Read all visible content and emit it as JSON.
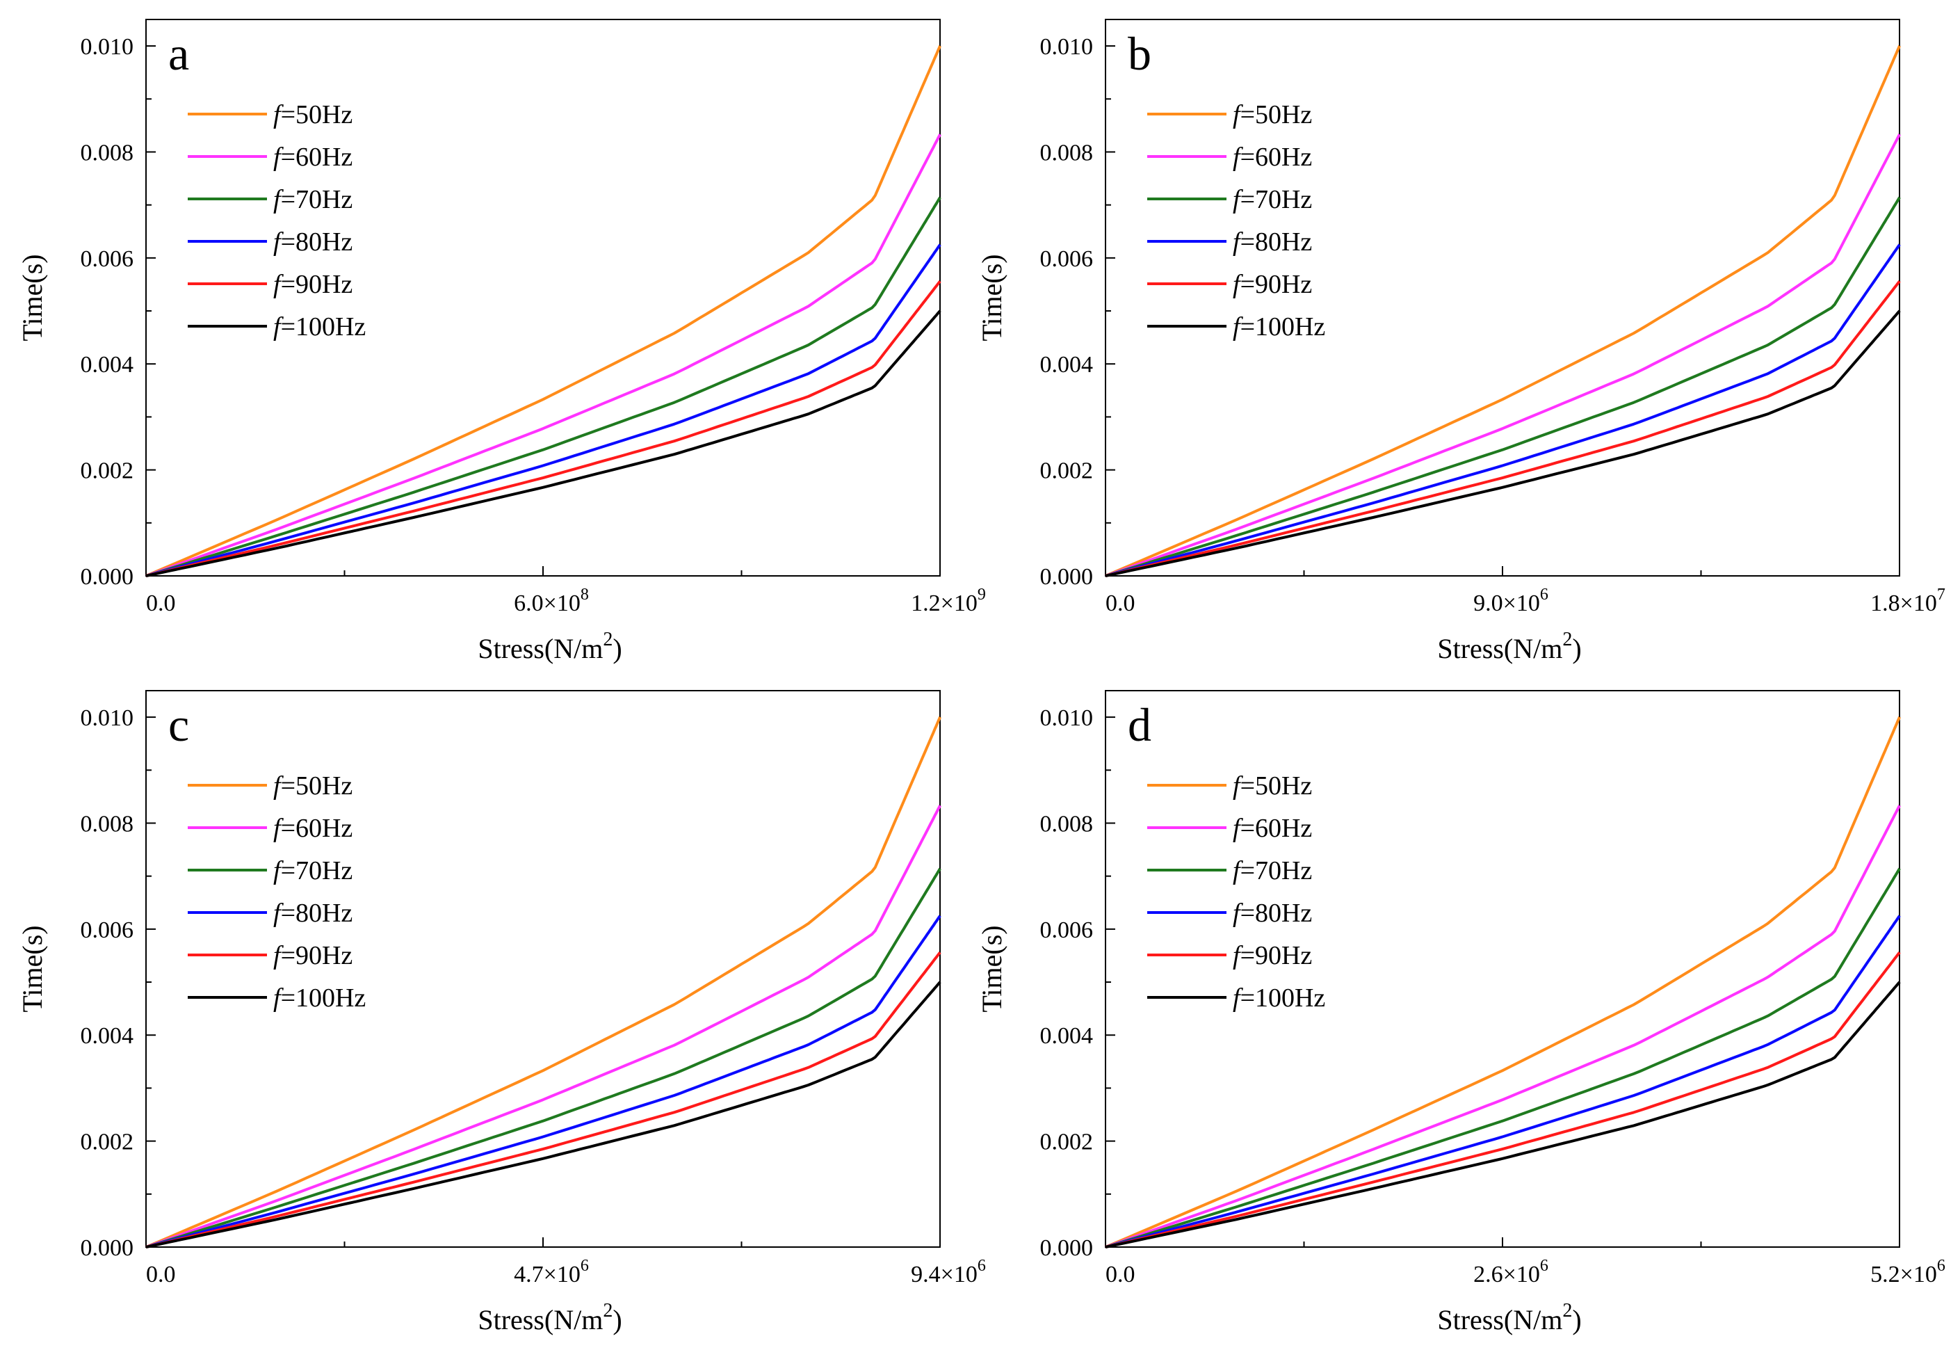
{
  "series_style": [
    {
      "label": "=50Hz",
      "freq": 50,
      "color": "#ff8c1a"
    },
    {
      "label": "=60Hz",
      "freq": 60,
      "color": "#ff33ff"
    },
    {
      "label": "=70Hz",
      "freq": 70,
      "color": "#1f7a1f"
    },
    {
      "label": "=80Hz",
      "freq": 80,
      "color": "#0a0aff"
    },
    {
      "label": "=90Hz",
      "freq": 90,
      "color": "#ff1a1a"
    },
    {
      "label": "=100Hz",
      "freq": 100,
      "color": "#000000"
    }
  ],
  "legend_prefix": "f",
  "chart_data": [
    {
      "type": "line",
      "panel_label": "a",
      "xlabel": "Stress(N/m2)",
      "ylabel": "Time(s)",
      "xlim": [
        0,
        1200000000.0
      ],
      "ylim": [
        0,
        0.0105
      ],
      "xticks": [
        {
          "mant": "0.0",
          "exp": ""
        },
        {
          "mant": "6.0×10",
          "exp": "8"
        },
        {
          "mant": "1.2×10",
          "exp": "9"
        }
      ],
      "yticks": [
        "0.000",
        "0.002",
        "0.004",
        "0.006",
        "0.008",
        "0.010"
      ],
      "legend_position": "top-left",
      "series": [
        {
          "name": "f=50Hz",
          "x": [
            0,
            200000000.0,
            400000000.0,
            600000000.0,
            800000000.0,
            1000000000.0,
            1100000000.0,
            1200000000.0
          ],
          "y": [
            0,
            0.00107,
            0.00218,
            0.00333,
            0.00459,
            0.00609,
            0.00712,
            0.01
          ]
        },
        {
          "name": "f=60Hz",
          "x": [
            0,
            200000000.0,
            400000000.0,
            600000000.0,
            800000000.0,
            1000000000.0,
            1100000000.0,
            1200000000.0
          ],
          "y": [
            0,
            0.00089,
            0.00182,
            0.00278,
            0.00382,
            0.00508,
            0.00593,
            0.00833
          ]
        },
        {
          "name": "f=70Hz",
          "x": [
            0,
            200000000.0,
            400000000.0,
            600000000.0,
            800000000.0,
            1000000000.0,
            1100000000.0,
            1200000000.0
          ],
          "y": [
            0,
            0.00077,
            0.00156,
            0.00238,
            0.00328,
            0.00435,
            0.00508,
            0.00714
          ]
        },
        {
          "name": "f=80Hz",
          "x": [
            0,
            200000000.0,
            400000000.0,
            600000000.0,
            800000000.0,
            1000000000.0,
            1100000000.0,
            1200000000.0
          ],
          "y": [
            0,
            0.00067,
            0.00136,
            0.00208,
            0.00287,
            0.00381,
            0.00445,
            0.00625
          ]
        },
        {
          "name": "f=90Hz",
          "x": [
            0,
            200000000.0,
            400000000.0,
            600000000.0,
            800000000.0,
            1000000000.0,
            1100000000.0,
            1200000000.0
          ],
          "y": [
            0,
            0.00059,
            0.00121,
            0.00185,
            0.00255,
            0.00338,
            0.00395,
            0.00556
          ]
        },
        {
          "name": "f=100Hz",
          "x": [
            0,
            200000000.0,
            400000000.0,
            600000000.0,
            800000000.0,
            1000000000.0,
            1100000000.0,
            1200000000.0
          ],
          "y": [
            0,
            0.00053,
            0.00109,
            0.00167,
            0.0023,
            0.00305,
            0.00356,
            0.005
          ]
        }
      ]
    },
    {
      "type": "line",
      "panel_label": "b",
      "xlabel": "Stress(N/m2)",
      "ylabel": "Time(s)",
      "xlim": [
        0,
        18000000.0
      ],
      "ylim": [
        0,
        0.0105
      ],
      "xticks": [
        {
          "mant": "0.0",
          "exp": ""
        },
        {
          "mant": "9.0×10",
          "exp": "6"
        },
        {
          "mant": "1.8×10",
          "exp": "7"
        }
      ],
      "yticks": [
        "0.000",
        "0.002",
        "0.004",
        "0.006",
        "0.008",
        "0.010"
      ],
      "legend_position": "top-left",
      "series": [
        {
          "name": "f=50Hz",
          "x": [
            0,
            3000000.0,
            6000000.0,
            9000000.0,
            12000000.0,
            15000000.0,
            16500000.0,
            18000000.0
          ],
          "y": [
            0,
            0.00107,
            0.00218,
            0.00333,
            0.00459,
            0.00609,
            0.00712,
            0.01
          ]
        },
        {
          "name": "f=60Hz",
          "x": [
            0,
            3000000.0,
            6000000.0,
            9000000.0,
            12000000.0,
            15000000.0,
            16500000.0,
            18000000.0
          ],
          "y": [
            0,
            0.00089,
            0.00182,
            0.00278,
            0.00382,
            0.00508,
            0.00593,
            0.00833
          ]
        },
        {
          "name": "f=70Hz",
          "x": [
            0,
            3000000.0,
            6000000.0,
            9000000.0,
            12000000.0,
            15000000.0,
            16500000.0,
            18000000.0
          ],
          "y": [
            0,
            0.00077,
            0.00156,
            0.00238,
            0.00328,
            0.00435,
            0.00508,
            0.00714
          ]
        },
        {
          "name": "f=80Hz",
          "x": [
            0,
            3000000.0,
            6000000.0,
            9000000.0,
            12000000.0,
            15000000.0,
            16500000.0,
            18000000.0
          ],
          "y": [
            0,
            0.00067,
            0.00136,
            0.00208,
            0.00287,
            0.00381,
            0.00445,
            0.00625
          ]
        },
        {
          "name": "f=90Hz",
          "x": [
            0,
            3000000.0,
            6000000.0,
            9000000.0,
            12000000.0,
            15000000.0,
            16500000.0,
            18000000.0
          ],
          "y": [
            0,
            0.00059,
            0.00121,
            0.00185,
            0.00255,
            0.00338,
            0.00395,
            0.00556
          ]
        },
        {
          "name": "f=100Hz",
          "x": [
            0,
            3000000.0,
            6000000.0,
            9000000.0,
            12000000.0,
            15000000.0,
            16500000.0,
            18000000.0
          ],
          "y": [
            0,
            0.00053,
            0.00109,
            0.00167,
            0.0023,
            0.00305,
            0.00356,
            0.005
          ]
        }
      ]
    },
    {
      "type": "line",
      "panel_label": "c",
      "xlabel": "Stress(N/m2)",
      "ylabel": "Time(s)",
      "xlim": [
        0,
        9400000.0
      ],
      "ylim": [
        0,
        0.0105
      ],
      "xticks": [
        {
          "mant": "0.0",
          "exp": ""
        },
        {
          "mant": "4.7×10",
          "exp": "6"
        },
        {
          "mant": "9.4×10",
          "exp": "6"
        }
      ],
      "yticks": [
        "0.000",
        "0.002",
        "0.004",
        "0.006",
        "0.008",
        "0.010"
      ],
      "legend_position": "top-left",
      "series": [
        {
          "name": "f=50Hz",
          "x": [
            0,
            1570000.0,
            3130000.0,
            4700000.0,
            6270000.0,
            7830000.0,
            8620000.0,
            9400000.0
          ],
          "y": [
            0,
            0.00107,
            0.00218,
            0.00333,
            0.00459,
            0.00609,
            0.00712,
            0.01
          ]
        },
        {
          "name": "f=60Hz",
          "x": [
            0,
            1570000.0,
            3130000.0,
            4700000.0,
            6270000.0,
            7830000.0,
            8620000.0,
            9400000.0
          ],
          "y": [
            0,
            0.00089,
            0.00182,
            0.00278,
            0.00382,
            0.00508,
            0.00593,
            0.00833
          ]
        },
        {
          "name": "f=70Hz",
          "x": [
            0,
            1570000.0,
            3130000.0,
            4700000.0,
            6270000.0,
            7830000.0,
            8620000.0,
            9400000.0
          ],
          "y": [
            0,
            0.00077,
            0.00156,
            0.00238,
            0.00328,
            0.00435,
            0.00508,
            0.00714
          ]
        },
        {
          "name": "f=80Hz",
          "x": [
            0,
            1570000.0,
            3130000.0,
            4700000.0,
            6270000.0,
            7830000.0,
            8620000.0,
            9400000.0
          ],
          "y": [
            0,
            0.00067,
            0.00136,
            0.00208,
            0.00287,
            0.00381,
            0.00445,
            0.00625
          ]
        },
        {
          "name": "f=90Hz",
          "x": [
            0,
            1570000.0,
            3130000.0,
            4700000.0,
            6270000.0,
            7830000.0,
            8620000.0,
            9400000.0
          ],
          "y": [
            0,
            0.00059,
            0.00121,
            0.00185,
            0.00255,
            0.00338,
            0.00395,
            0.00556
          ]
        },
        {
          "name": "f=100Hz",
          "x": [
            0,
            1570000.0,
            3130000.0,
            4700000.0,
            6270000.0,
            7830000.0,
            8620000.0,
            9400000.0
          ],
          "y": [
            0,
            0.00053,
            0.00109,
            0.00167,
            0.0023,
            0.00305,
            0.00356,
            0.005
          ]
        }
      ]
    },
    {
      "type": "line",
      "panel_label": "d",
      "xlabel": "Stress(N/m2)",
      "ylabel": "Time(s)",
      "xlim": [
        0,
        5200000.0
      ],
      "ylim": [
        0,
        0.0105
      ],
      "xticks": [
        {
          "mant": "0.0",
          "exp": ""
        },
        {
          "mant": "2.6×10",
          "exp": "6"
        },
        {
          "mant": "5.2×10",
          "exp": "6"
        }
      ],
      "yticks": [
        "0.000",
        "0.002",
        "0.004",
        "0.006",
        "0.008",
        "0.010"
      ],
      "legend_position": "top-left",
      "series": [
        {
          "name": "f=50Hz",
          "x": [
            0,
            870000.0,
            1730000.0,
            2600000.0,
            3470000.0,
            4330000.0,
            4770000.0,
            5200000.0
          ],
          "y": [
            0,
            0.00107,
            0.00218,
            0.00333,
            0.00459,
            0.00609,
            0.00712,
            0.01
          ]
        },
        {
          "name": "f=60Hz",
          "x": [
            0,
            870000.0,
            1730000.0,
            2600000.0,
            3470000.0,
            4330000.0,
            4770000.0,
            5200000.0
          ],
          "y": [
            0,
            0.00089,
            0.00182,
            0.00278,
            0.00382,
            0.00508,
            0.00593,
            0.00833
          ]
        },
        {
          "name": "f=70Hz",
          "x": [
            0,
            870000.0,
            1730000.0,
            2600000.0,
            3470000.0,
            4330000.0,
            4770000.0,
            5200000.0
          ],
          "y": [
            0,
            0.00077,
            0.00156,
            0.00238,
            0.00328,
            0.00435,
            0.00508,
            0.00714
          ]
        },
        {
          "name": "f=80Hz",
          "x": [
            0,
            870000.0,
            1730000.0,
            2600000.0,
            3470000.0,
            4330000.0,
            4770000.0,
            5200000.0
          ],
          "y": [
            0,
            0.00067,
            0.00136,
            0.00208,
            0.00287,
            0.00381,
            0.00445,
            0.00625
          ]
        },
        {
          "name": "f=90Hz",
          "x": [
            0,
            870000.0,
            1730000.0,
            2600000.0,
            3470000.0,
            4330000.0,
            4770000.0,
            5200000.0
          ],
          "y": [
            0,
            0.00059,
            0.00121,
            0.00185,
            0.00255,
            0.00338,
            0.00395,
            0.00556
          ]
        },
        {
          "name": "f=100Hz",
          "x": [
            0,
            870000.0,
            1730000.0,
            2600000.0,
            3470000.0,
            4330000.0,
            4770000.0,
            5200000.0
          ],
          "y": [
            0,
            0.00053,
            0.00109,
            0.00167,
            0.0023,
            0.00305,
            0.00356,
            0.005
          ]
        }
      ]
    }
  ]
}
